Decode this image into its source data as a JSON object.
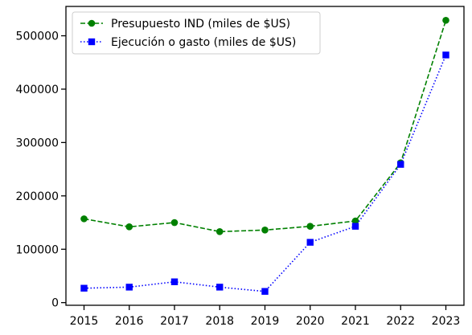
{
  "chart_data": {
    "type": "line",
    "title": "",
    "xlabel": "",
    "ylabel": "",
    "categories": [
      "2015",
      "2016",
      "2017",
      "2018",
      "2019",
      "2020",
      "2021",
      "2022",
      "2023"
    ],
    "ylim": [
      -5000,
      555000
    ],
    "yticks": [
      0,
      100000,
      200000,
      300000,
      400000,
      500000
    ],
    "ytick_labels": [
      "0",
      "100000",
      "200000",
      "300000",
      "400000",
      "500000"
    ],
    "grid": false,
    "legend_position": "top-left",
    "series": [
      {
        "name": "Presupuesto IND (miles de $US)",
        "values": [
          157000,
          142000,
          150000,
          133000,
          136000,
          143000,
          153000,
          262000,
          529000
        ],
        "color": "#008000",
        "line_style": "dashed",
        "marker": "circle"
      },
      {
        "name": "Ejecución o gasto (miles de $US)",
        "values": [
          27000,
          29000,
          39000,
          29000,
          21000,
          113000,
          143000,
          259000,
          464000
        ],
        "color": "#0000ff",
        "line_style": "dotted",
        "marker": "square"
      }
    ]
  }
}
